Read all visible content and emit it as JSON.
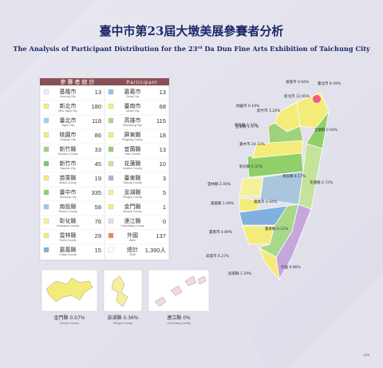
{
  "header": {
    "title": "臺中市第23屆大墩美展參賽者分析",
    "subtitle_pre": "The Analysis of Participant Distribution for the 23",
    "subtitle_sup": "rd",
    "subtitle_post": " Da Dun Fine Arts Exhibition of Taichung City"
  },
  "table": {
    "header_zh": "參賽者統計",
    "header_en": "Participant",
    "left": [
      {
        "zh": "基隆市",
        "en": "Keelung City",
        "count": 13,
        "color": "#e8eef4"
      },
      {
        "zh": "新北市",
        "en": "New Taipei City",
        "count": 180,
        "color": "#f3ec7a"
      },
      {
        "zh": "臺北市",
        "en": "Taipei City",
        "count": 118,
        "color": "#9fd3ec"
      },
      {
        "zh": "桃園市",
        "en": "Taoyuan City",
        "count": 86,
        "color": "#f3ec7a"
      },
      {
        "zh": "新竹縣",
        "en": "Hsinchu County",
        "count": 33,
        "color": "#9fd27a"
      },
      {
        "zh": "新竹市",
        "en": "Hsinchu City",
        "count": 45,
        "color": "#7cc47a"
      },
      {
        "zh": "苗栗縣",
        "en": "Miaoli County",
        "count": 19,
        "color": "#f3ec7a"
      },
      {
        "zh": "臺中市",
        "en": "Taichung City",
        "count": 335,
        "color": "#8fd06a"
      },
      {
        "zh": "南投縣",
        "en": "Nantou County",
        "count": 58,
        "color": "#a9c6de"
      },
      {
        "zh": "彰化縣",
        "en": "Changhua County",
        "count": 76,
        "color": "#f6f09a"
      },
      {
        "zh": "雲林縣",
        "en": "Yunlin County",
        "count": 29,
        "color": "#f3ec7a"
      },
      {
        "zh": "嘉義縣",
        "en": "Chiayi County",
        "count": 15,
        "color": "#7fb0de"
      }
    ],
    "right": [
      {
        "zh": "嘉義市",
        "en": "Chiayi City",
        "count": 13,
        "color": "#8fc2e8"
      },
      {
        "zh": "臺南市",
        "en": "Tainan City",
        "count": 68,
        "color": "#f3ec7a"
      },
      {
        "zh": "高雄市",
        "en": "Kaohsiung City",
        "count": 115,
        "color": "#a8d88a"
      },
      {
        "zh": "屏東縣",
        "en": "Pingtung County",
        "count": 18,
        "color": "#f3ec7a"
      },
      {
        "zh": "宜蘭縣",
        "en": "Yilan County",
        "count": 13,
        "color": "#8fd06a"
      },
      {
        "zh": "花蓮縣",
        "en": "Hualien County",
        "count": 10,
        "color": "#c6e39a"
      },
      {
        "zh": "臺東縣",
        "en": "Taitung County",
        "count": 3,
        "color": "#c7a6dc"
      },
      {
        "zh": "澎湖縣",
        "en": "Penghu County",
        "count": 5,
        "color": "#f6f09a"
      },
      {
        "zh": "金門縣",
        "en": "Kinmen County",
        "count": 1,
        "color": "#f3ec7a"
      },
      {
        "zh": "連江縣",
        "en": "Lienchiang County",
        "count": 0,
        "color": "#f0d9e0"
      },
      {
        "zh": "外國",
        "en": "Alien",
        "count": 137,
        "color": "#f08a4b"
      },
      {
        "zh": "總計",
        "en": "SUM",
        "count": "1,390人",
        "color": "#ffffff"
      }
    ]
  },
  "map": {
    "labels": [
      "基隆市 0.94%",
      "臺北市 8.49%",
      "新北市 12.95%",
      "桃園市 6.19%",
      "新竹縣 2.37%",
      "新竹市 3.24%",
      "苗栗縣 1.37%",
      "宜蘭縣 0.94%",
      "臺中市 24.10%",
      "彰化縣 5.47%",
      "南投縣 4.17%",
      "花蓮縣 0.72%",
      "雲林縣 2.09%",
      "嘉義縣 1.08%",
      "嘉義市 0.94%",
      "臺南市 4.89%",
      "高雄市 8.27%",
      "臺東縣 0.22%",
      "屏東縣 1.29%",
      "外國 9.86%"
    ],
    "islands": [
      {
        "zh": "金門縣 0.07%",
        "en": "Kinmen County"
      },
      {
        "zh": "澎湖縣 0.36%",
        "en": "Penghu County"
      },
      {
        "zh": "連江縣 0%",
        "en": "Lienchiang County"
      }
    ]
  },
  "page_number": "103"
}
